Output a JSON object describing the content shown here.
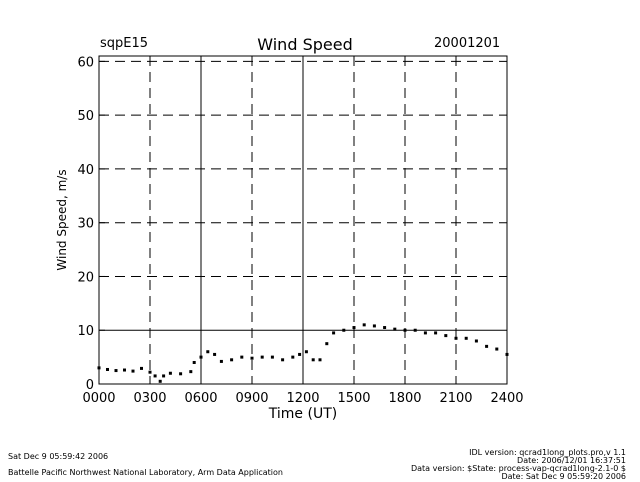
{
  "header": {
    "site": "sqpE15",
    "title": "Wind Speed",
    "date": "20001201"
  },
  "chart_data": {
    "type": "scatter",
    "title": "Wind Speed",
    "xlabel": "Time (UT)",
    "ylabel": "Wind Speed, m/s",
    "xlim": [
      0,
      2400
    ],
    "ylim": [
      0,
      61
    ],
    "x_ticks": [
      {
        "value": 0,
        "label": "0000"
      },
      {
        "value": 300,
        "label": "0300"
      },
      {
        "value": 600,
        "label": "0600"
      },
      {
        "value": 900,
        "label": "0900"
      },
      {
        "value": 1200,
        "label": "1200"
      },
      {
        "value": 1500,
        "label": "1500"
      },
      {
        "value": 1800,
        "label": "1800"
      },
      {
        "value": 2100,
        "label": "2100"
      },
      {
        "value": 2400,
        "label": "2400"
      }
    ],
    "y_ticks": [
      0,
      10,
      20,
      30,
      40,
      50,
      60
    ],
    "grid": "dashed",
    "solid_reference_lines": {
      "x": [
        600,
        1200
      ],
      "y": [
        10
      ]
    },
    "series": [
      {
        "name": "Wind Speed",
        "x": [
          0,
          50,
          100,
          150,
          200,
          250,
          300,
          330,
          360,
          380,
          420,
          480,
          540,
          560,
          600,
          640,
          680,
          720,
          780,
          840,
          900,
          960,
          1020,
          1080,
          1140,
          1180,
          1220,
          1260,
          1300,
          1340,
          1380,
          1440,
          1500,
          1560,
          1620,
          1680,
          1740,
          1800,
          1860,
          1920,
          1980,
          2040,
          2100,
          2160,
          2220,
          2280,
          2340,
          2400
        ],
        "y": [
          3,
          2.7,
          2.5,
          2.6,
          2.4,
          2.9,
          2.2,
          1.5,
          0.5,
          1.5,
          2,
          1.9,
          2.3,
          4,
          5,
          6,
          5.5,
          4.2,
          4.5,
          5,
          4.8,
          5,
          5,
          4.5,
          5,
          5.5,
          6,
          4.5,
          4.5,
          7.5,
          9.5,
          10,
          10.5,
          11,
          10.8,
          10.5,
          10.2,
          10,
          10,
          9.5,
          9.5,
          9,
          8.5,
          8.5,
          8,
          7,
          6.5,
          5.5
        ]
      }
    ]
  },
  "footer": {
    "run_date": "Sat Dec  9 05:59:42 2006",
    "lab": "Battelle Pacific Northwest National Laboratory, Arm Data Application",
    "idl_version": "IDL version: qcrad1long_plots.pro,v 1.1",
    "file_date": "Date: 2006/12/01 16:37:51",
    "data_version": "Data version: $State: process-vap-qcrad1long-2.1-0 $",
    "data_date": "Date: Sat Dec  9 05:59:20 2006"
  }
}
